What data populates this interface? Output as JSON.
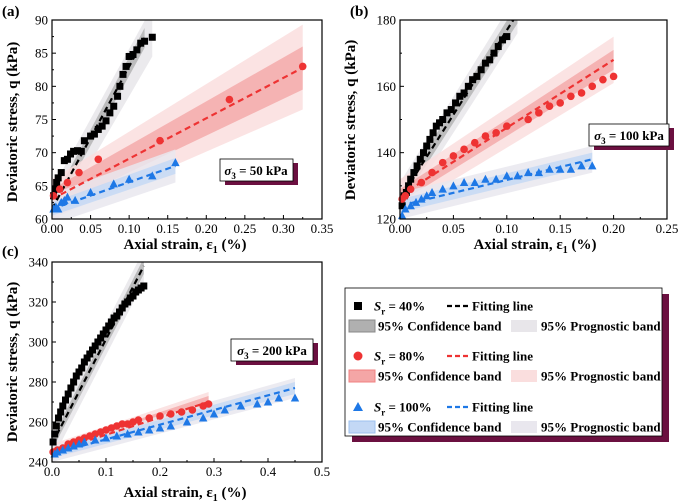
{
  "figure": {
    "legend": {
      "groups": [
        {
          "marker": "square",
          "color": "#000000",
          "var": "S",
          "sub": "r",
          "eq": " = 40%",
          "fit_label": "Fitting line",
          "conf_label": "95% Confidence band",
          "pred_label": "95% Prognostic band",
          "conf_color": "#b0b0b0",
          "pred_color": "#e8e6ea"
        },
        {
          "marker": "circle",
          "color": "#ee3333",
          "var": "S",
          "sub": "r",
          "eq": " = 80%",
          "fit_label": "Fitting line",
          "conf_label": "95% Confidence band",
          "pred_label": "95% Prognostic band",
          "conf_color": "#f4a6a6",
          "pred_color": "#fadede"
        },
        {
          "marker": "triangle",
          "color": "#1e78e6",
          "var": "S",
          "sub": "r",
          "eq": " = 100%",
          "fit_label": "Fitting line",
          "conf_label": "95% Confidence band",
          "pred_label": "95% Prognostic band",
          "conf_color": "#c3d8f5",
          "pred_color": "#e9e7ee"
        }
      ]
    }
  },
  "chart_data": [
    {
      "type": "scatter",
      "panel_label": "(a)",
      "xlabel": "Axial strain, ε",
      "xlabel_sub": "1",
      "xlabel_unit": " (%)",
      "ylabel": "Deviatoric stress, q (kPa)",
      "xlim": [
        0,
        0.35
      ],
      "ylim": [
        60,
        90
      ],
      "xticks": [
        "0.00",
        "0.05",
        "0.10",
        "0.15",
        "0.20",
        "0.25",
        "0.30",
        "0.35"
      ],
      "yticks": [
        "60",
        "65",
        "70",
        "75",
        "80",
        "85",
        "90"
      ],
      "annotation": {
        "var": "σ",
        "sub": "3",
        "text": " = 50 kPa"
      },
      "series": [
        {
          "name": "Sr = 40%",
          "marker": "square",
          "color": "#000000",
          "x": [
            0.002,
            0.004,
            0.006,
            0.008,
            0.012,
            0.016,
            0.02,
            0.024,
            0.028,
            0.033,
            0.038,
            0.042,
            0.05,
            0.055,
            0.06,
            0.065,
            0.07,
            0.075,
            0.08,
            0.085,
            0.088,
            0.092,
            0.096,
            0.1,
            0.105,
            0.11,
            0.115,
            0.12,
            0.13
          ],
          "y": [
            63.5,
            64.5,
            65.5,
            66.2,
            67.0,
            68.8,
            69.0,
            69.8,
            70.2,
            70.3,
            70.2,
            71.8,
            72.5,
            72.8,
            73.5,
            74.0,
            74.8,
            76.0,
            77.0,
            78.5,
            80.0,
            81.8,
            83.0,
            84.5,
            84.8,
            85.5,
            86.5,
            86.8,
            87.4
          ],
          "fit": {
            "x": [
              0,
              0.12
            ],
            "y": [
              61.5,
              87.3
            ]
          },
          "conf": {
            "x": [
              0,
              0.12
            ],
            "lo": [
              60.5,
              85.8
            ],
            "hi": [
              62.5,
              88.8
            ]
          },
          "pred": {
            "x": [
              0,
              0.13
            ],
            "lo": [
              58.5,
              84.5
            ],
            "hi": [
              64.5,
              92.0
            ]
          }
        },
        {
          "name": "Sr = 80%",
          "marker": "circle",
          "color": "#ee3333",
          "x": [
            0.002,
            0.01,
            0.02,
            0.035,
            0.06,
            0.14,
            0.23,
            0.325
          ],
          "y": [
            63.5,
            64.5,
            65.5,
            67.0,
            69.0,
            71.8,
            78.0,
            83.0
          ],
          "fit": {
            "x": [
              0,
              0.325
            ],
            "y": [
              63.0,
              82.8
            ]
          },
          "conf": {
            "x": [
              0,
              0.325
            ],
            "lo": [
              61.5,
              79.5
            ],
            "hi": [
              64.5,
              86.0
            ]
          },
          "pred": {
            "x": [
              0,
              0.325
            ],
            "lo": [
              60.0,
              76.5
            ],
            "hi": [
              66.0,
              89.3
            ]
          }
        },
        {
          "name": "Sr = 100%",
          "marker": "triangle",
          "color": "#1e78e6",
          "x": [
            0.002,
            0.005,
            0.008,
            0.012,
            0.016,
            0.02,
            0.03,
            0.05,
            0.08,
            0.1,
            0.13,
            0.16
          ],
          "y": [
            61.5,
            61.8,
            61.5,
            62.5,
            62.8,
            63.3,
            62.8,
            64.0,
            65.3,
            66.0,
            66.5,
            68.5
          ],
          "fit": {
            "x": [
              0,
              0.16
            ],
            "y": [
              61.5,
              68.0
            ]
          },
          "conf": {
            "x": [
              0,
              0.16
            ],
            "lo": [
              60.5,
              66.8
            ],
            "hi": [
              62.5,
              69.2
            ]
          },
          "pred": {
            "x": [
              0,
              0.16
            ],
            "lo": [
              59.2,
              65.5
            ],
            "hi": [
              63.8,
              70.5
            ]
          }
        }
      ]
    },
    {
      "type": "scatter",
      "panel_label": "(b)",
      "xlabel": "Axial strain, ε",
      "xlabel_sub": "1",
      "xlabel_unit": " (%)",
      "ylabel": "Deviatoric stress, q (kPa)",
      "xlim": [
        0,
        0.25
      ],
      "ylim": [
        120,
        180
      ],
      "xticks": [
        "0.00",
        "0.05",
        "0.10",
        "0.15",
        "0.20",
        "0.25"
      ],
      "yticks": [
        "120",
        "140",
        "160",
        "180"
      ],
      "annotation": {
        "var": "σ",
        "sub": "3",
        "text": " = 100 kPa"
      },
      "series": [
        {
          "name": "Sr = 40%",
          "marker": "square",
          "color": "#000000",
          "x": [
            0.002,
            0.004,
            0.006,
            0.008,
            0.01,
            0.013,
            0.016,
            0.019,
            0.022,
            0.025,
            0.028,
            0.031,
            0.034,
            0.037,
            0.04,
            0.044,
            0.048,
            0.052,
            0.056,
            0.06,
            0.064,
            0.068,
            0.072,
            0.076,
            0.08,
            0.084,
            0.088,
            0.092,
            0.096,
            0.1
          ],
          "y": [
            124,
            127,
            128,
            130,
            132,
            134,
            136,
            138,
            140,
            142,
            144,
            146,
            148,
            149,
            150,
            152,
            153,
            155,
            157,
            158,
            160,
            162,
            163,
            165,
            167,
            168,
            170,
            172,
            174,
            175
          ],
          "fit": {
            "x": [
              0,
              0.11
            ],
            "y": [
              126,
              182
            ]
          },
          "conf": {
            "x": [
              0,
              0.11
            ],
            "lo": [
              124,
              179
            ],
            "hi": [
              128,
              185
            ]
          },
          "pred": {
            "x": [
              0,
              0.11
            ],
            "lo": [
              121,
              176
            ],
            "hi": [
              131,
              188
            ]
          }
        },
        {
          "name": "Sr = 80%",
          "marker": "circle",
          "color": "#ee3333",
          "x": [
            0.002,
            0.005,
            0.01,
            0.02,
            0.03,
            0.04,
            0.05,
            0.06,
            0.07,
            0.08,
            0.09,
            0.1,
            0.12,
            0.13,
            0.14,
            0.15,
            0.16,
            0.17,
            0.18,
            0.19,
            0.2
          ],
          "y": [
            126,
            127,
            129,
            131,
            134,
            137,
            139,
            141,
            143,
            145,
            146,
            148,
            150,
            152,
            154,
            155,
            157,
            158,
            160,
            162,
            163
          ],
          "fit": {
            "x": [
              0,
              0.2
            ],
            "y": [
              127,
              168
            ]
          },
          "conf": {
            "x": [
              0,
              0.2
            ],
            "lo": [
              125,
              165
            ],
            "hi": [
              129,
              171
            ]
          },
          "pred": {
            "x": [
              0,
              0.2
            ],
            "lo": [
              122,
              161
            ],
            "hi": [
              132,
              175
            ]
          }
        },
        {
          "name": "Sr = 100%",
          "marker": "triangle",
          "color": "#1e78e6",
          "x": [
            0.002,
            0.005,
            0.01,
            0.015,
            0.02,
            0.025,
            0.03,
            0.04,
            0.05,
            0.06,
            0.07,
            0.08,
            0.09,
            0.1,
            0.11,
            0.12,
            0.13,
            0.14,
            0.15,
            0.16,
            0.17,
            0.18
          ],
          "y": [
            121,
            123,
            124,
            125,
            126,
            127,
            128,
            129,
            130,
            131,
            131,
            132,
            132,
            133,
            133,
            134,
            134,
            135,
            135,
            135,
            136,
            136
          ],
          "fit": {
            "x": [
              0,
              0.18
            ],
            "y": [
              124,
              138
            ]
          },
          "conf": {
            "x": [
              0,
              0.18
            ],
            "lo": [
              122,
              136
            ],
            "hi": [
              126,
              140
            ]
          },
          "pred": {
            "x": [
              0,
              0.18
            ],
            "lo": [
              120,
              134
            ],
            "hi": [
              128,
              142
            ]
          }
        }
      ]
    },
    {
      "type": "scatter",
      "panel_label": "(c)",
      "xlabel": "Axial strain, ε",
      "xlabel_sub": "1",
      "xlabel_unit": " (%)",
      "ylabel": "Deviatoric stress, q (kPa)",
      "xlim": [
        0,
        0.5
      ],
      "ylim": [
        240,
        340
      ],
      "xticks": [
        "0.0",
        "0.1",
        "0.2",
        "0.3",
        "0.4",
        "0.5"
      ],
      "yticks": [
        "240",
        "260",
        "280",
        "300",
        "320",
        "340"
      ],
      "annotation": {
        "var": "σ",
        "sub": "3",
        "text": " = 200 kPa"
      },
      "series": [
        {
          "name": "Sr = 40%",
          "marker": "square",
          "color": "#000000",
          "x": [
            0.002,
            0.005,
            0.008,
            0.012,
            0.016,
            0.02,
            0.025,
            0.03,
            0.035,
            0.04,
            0.045,
            0.05,
            0.055,
            0.06,
            0.065,
            0.07,
            0.075,
            0.08,
            0.085,
            0.09,
            0.095,
            0.1,
            0.105,
            0.11,
            0.115,
            0.12,
            0.125,
            0.13,
            0.135,
            0.14,
            0.145,
            0.15,
            0.155,
            0.16,
            0.165,
            0.17
          ],
          "y": [
            250,
            254,
            258,
            262,
            265,
            268,
            271,
            274,
            277,
            280,
            283,
            285,
            287,
            290,
            292,
            294,
            296,
            298,
            300,
            302,
            304,
            306,
            308,
            310,
            312,
            313,
            315,
            317,
            319,
            320,
            322,
            323,
            325,
            326,
            327,
            328
          ],
          "fit": {
            "x": [
              0,
              0.17
            ],
            "y": [
              249,
              338
            ]
          },
          "conf": {
            "x": [
              0,
              0.17
            ],
            "lo": [
              246,
              334
            ],
            "hi": [
              252,
              342
            ]
          },
          "pred": {
            "x": [
              0,
              0.17
            ],
            "lo": [
              241,
              330
            ],
            "hi": [
              257,
              346
            ]
          }
        },
        {
          "name": "Sr = 80%",
          "marker": "circle",
          "color": "#ee3333",
          "x": [
            0.002,
            0.01,
            0.02,
            0.03,
            0.04,
            0.05,
            0.06,
            0.07,
            0.08,
            0.09,
            0.1,
            0.11,
            0.12,
            0.13,
            0.14,
            0.15,
            0.16,
            0.18,
            0.2,
            0.22,
            0.24,
            0.26,
            0.28,
            0.29
          ],
          "y": [
            245,
            246,
            247,
            249,
            250,
            251,
            252,
            253,
            254,
            255,
            256,
            257,
            258,
            259,
            259,
            260,
            261,
            262,
            263,
            264,
            265,
            266,
            268,
            269
          ],
          "fit": {
            "x": [
              0,
              0.29
            ],
            "y": [
              245,
              270
            ]
          },
          "conf": {
            "x": [
              0,
              0.29
            ],
            "lo": [
              243,
              267
            ],
            "hi": [
              247,
              273
            ]
          },
          "pred": {
            "x": [
              0,
              0.29
            ],
            "lo": [
              241,
              265
            ],
            "hi": [
              249,
              275
            ]
          }
        },
        {
          "name": "Sr = 100%",
          "marker": "triangle",
          "color": "#1e78e6",
          "x": [
            0.005,
            0.01,
            0.02,
            0.03,
            0.04,
            0.05,
            0.06,
            0.08,
            0.1,
            0.12,
            0.14,
            0.16,
            0.18,
            0.2,
            0.22,
            0.25,
            0.28,
            0.3,
            0.32,
            0.35,
            0.38,
            0.4,
            0.42,
            0.45
          ],
          "y": [
            244,
            245,
            246,
            247,
            248,
            249,
            250,
            251,
            252,
            253,
            254,
            255,
            256,
            257,
            258,
            260,
            262,
            264,
            266,
            268,
            269,
            270,
            272,
            272
          ],
          "fit": {
            "x": [
              0,
              0.45
            ],
            "y": [
              244,
              277
            ]
          },
          "conf": {
            "x": [
              0,
              0.45
            ],
            "lo": [
              242,
              274
            ],
            "hi": [
              246,
              280
            ]
          },
          "pred": {
            "x": [
              0,
              0.45
            ],
            "lo": [
              240,
              272
            ],
            "hi": [
              248,
              282
            ]
          }
        }
      ]
    }
  ]
}
